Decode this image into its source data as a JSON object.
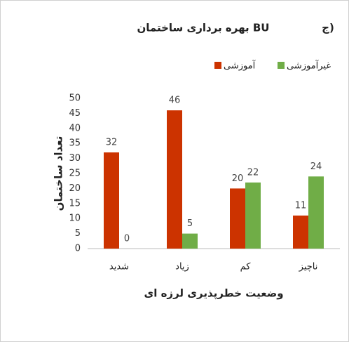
{
  "chart_data": {
    "type": "bar",
    "title": "بهره برداری ساختمان BU",
    "annotation": "ج)",
    "categories": [
      "شدید",
      "زیاد",
      "کم",
      "ناچیز"
    ],
    "series": [
      {
        "name": "آموزشی",
        "color": "#cc3300",
        "values": [
          32,
          46,
          20,
          11
        ]
      },
      {
        "name": "غیرآموزشی",
        "color": "#70ad47",
        "values": [
          0,
          5,
          22,
          24
        ]
      }
    ],
    "ylabel": "تعداد ساختمان",
    "xlabel": "وضعیت خطرپذیری لرزه ای",
    "ylim": [
      0,
      50
    ],
    "yticks": [
      0,
      5,
      10,
      15,
      20,
      25,
      30,
      35,
      40,
      45,
      50
    ],
    "grid": false,
    "legend": "top"
  }
}
